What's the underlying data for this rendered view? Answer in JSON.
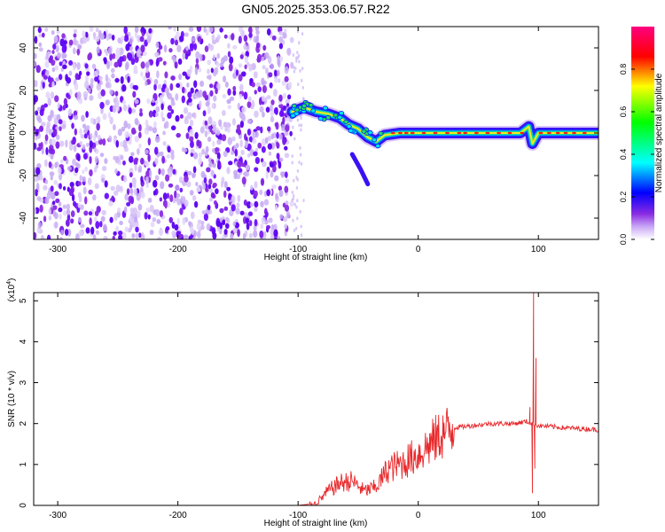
{
  "title": "GN05.2025.353.06.57.R22",
  "chart_data": [
    {
      "type": "heatmap",
      "xlabel": "Height of straight line (km)",
      "ylabel": "Frequency (Hz)",
      "xlim": [
        -320,
        150
      ],
      "ylim": [
        -50,
        50
      ],
      "xticks": [
        -300,
        -200,
        -100,
        0,
        100
      ],
      "yticks": [
        -40,
        -20,
        0,
        20,
        40
      ],
      "colorbar": {
        "label": "Normalized spectral amplitude",
        "range": [
          0,
          1
        ],
        "ticks": [
          0.0,
          0.2,
          0.4,
          0.6,
          0.8
        ],
        "colormap": [
          "#ffffff",
          "#8a2be2",
          "#0000ff",
          "#00ffff",
          "#00ff00",
          "#ffff00",
          "#ff0000",
          "#ff0080"
        ]
      },
      "noise_region_x": [
        -320,
        -105
      ],
      "signal_track": [
        {
          "x": -105,
          "y": 10
        },
        {
          "x": -95,
          "y": 12
        },
        {
          "x": -85,
          "y": 10
        },
        {
          "x": -75,
          "y": 9
        },
        {
          "x": -65,
          "y": 7
        },
        {
          "x": -58,
          "y": 4
        },
        {
          "x": -50,
          "y": 2
        },
        {
          "x": -42,
          "y": -2
        },
        {
          "x": -35,
          "y": -4
        },
        {
          "x": -28,
          "y": -1
        },
        {
          "x": -15,
          "y": 0
        },
        {
          "x": 0,
          "y": 0
        },
        {
          "x": 50,
          "y": 0
        },
        {
          "x": 85,
          "y": 0
        },
        {
          "x": 92,
          "y": 3
        },
        {
          "x": 95,
          "y": -5
        },
        {
          "x": 100,
          "y": 0
        },
        {
          "x": 150,
          "y": 0
        }
      ],
      "branch_track": [
        {
          "x": -55,
          "y": -10
        },
        {
          "x": -48,
          "y": -17
        },
        {
          "x": -42,
          "y": -24
        }
      ]
    },
    {
      "type": "line",
      "xlabel": "Height of straight line (km)",
      "ylabel": "SNR (10 * v/v)",
      "y_multiplier": "(x10",
      "y_multiplier_exp": "4",
      "xlim": [
        -320,
        150
      ],
      "ylim": [
        0,
        5.2
      ],
      "xticks": [
        -300,
        -200,
        -100,
        0,
        100
      ],
      "yticks": [
        0,
        1,
        2,
        3,
        4,
        5
      ],
      "series": [
        {
          "color": "#e8282b",
          "envelope": [
            {
              "x": -320,
              "y": 0.0
            },
            {
              "x": -100,
              "y": 0.0
            },
            {
              "x": -85,
              "y": 0.05
            },
            {
              "x": -75,
              "y": 0.35
            },
            {
              "x": -65,
              "y": 0.55
            },
            {
              "x": -55,
              "y": 0.6
            },
            {
              "x": -45,
              "y": 0.35
            },
            {
              "x": -35,
              "y": 0.45
            },
            {
              "x": -25,
              "y": 0.9
            },
            {
              "x": -15,
              "y": 1.0
            },
            {
              "x": 0,
              "y": 1.25
            },
            {
              "x": 10,
              "y": 1.5
            },
            {
              "x": 20,
              "y": 1.75
            },
            {
              "x": 30,
              "y": 1.9
            },
            {
              "x": 45,
              "y": 1.95
            },
            {
              "x": 60,
              "y": 2.0
            },
            {
              "x": 80,
              "y": 2.0
            },
            {
              "x": 90,
              "y": 2.05
            },
            {
              "x": 100,
              "y": 1.95
            },
            {
              "x": 120,
              "y": 1.9
            },
            {
              "x": 150,
              "y": 1.85
            }
          ],
          "spikes": [
            {
              "x": 93,
              "y": 2.4
            },
            {
              "x": 95,
              "y": 0.3
            },
            {
              "x": 96,
              "y": 5.2
            },
            {
              "x": 97,
              "y": 0.9
            },
            {
              "x": 98,
              "y": 3.6
            }
          ]
        }
      ]
    }
  ]
}
